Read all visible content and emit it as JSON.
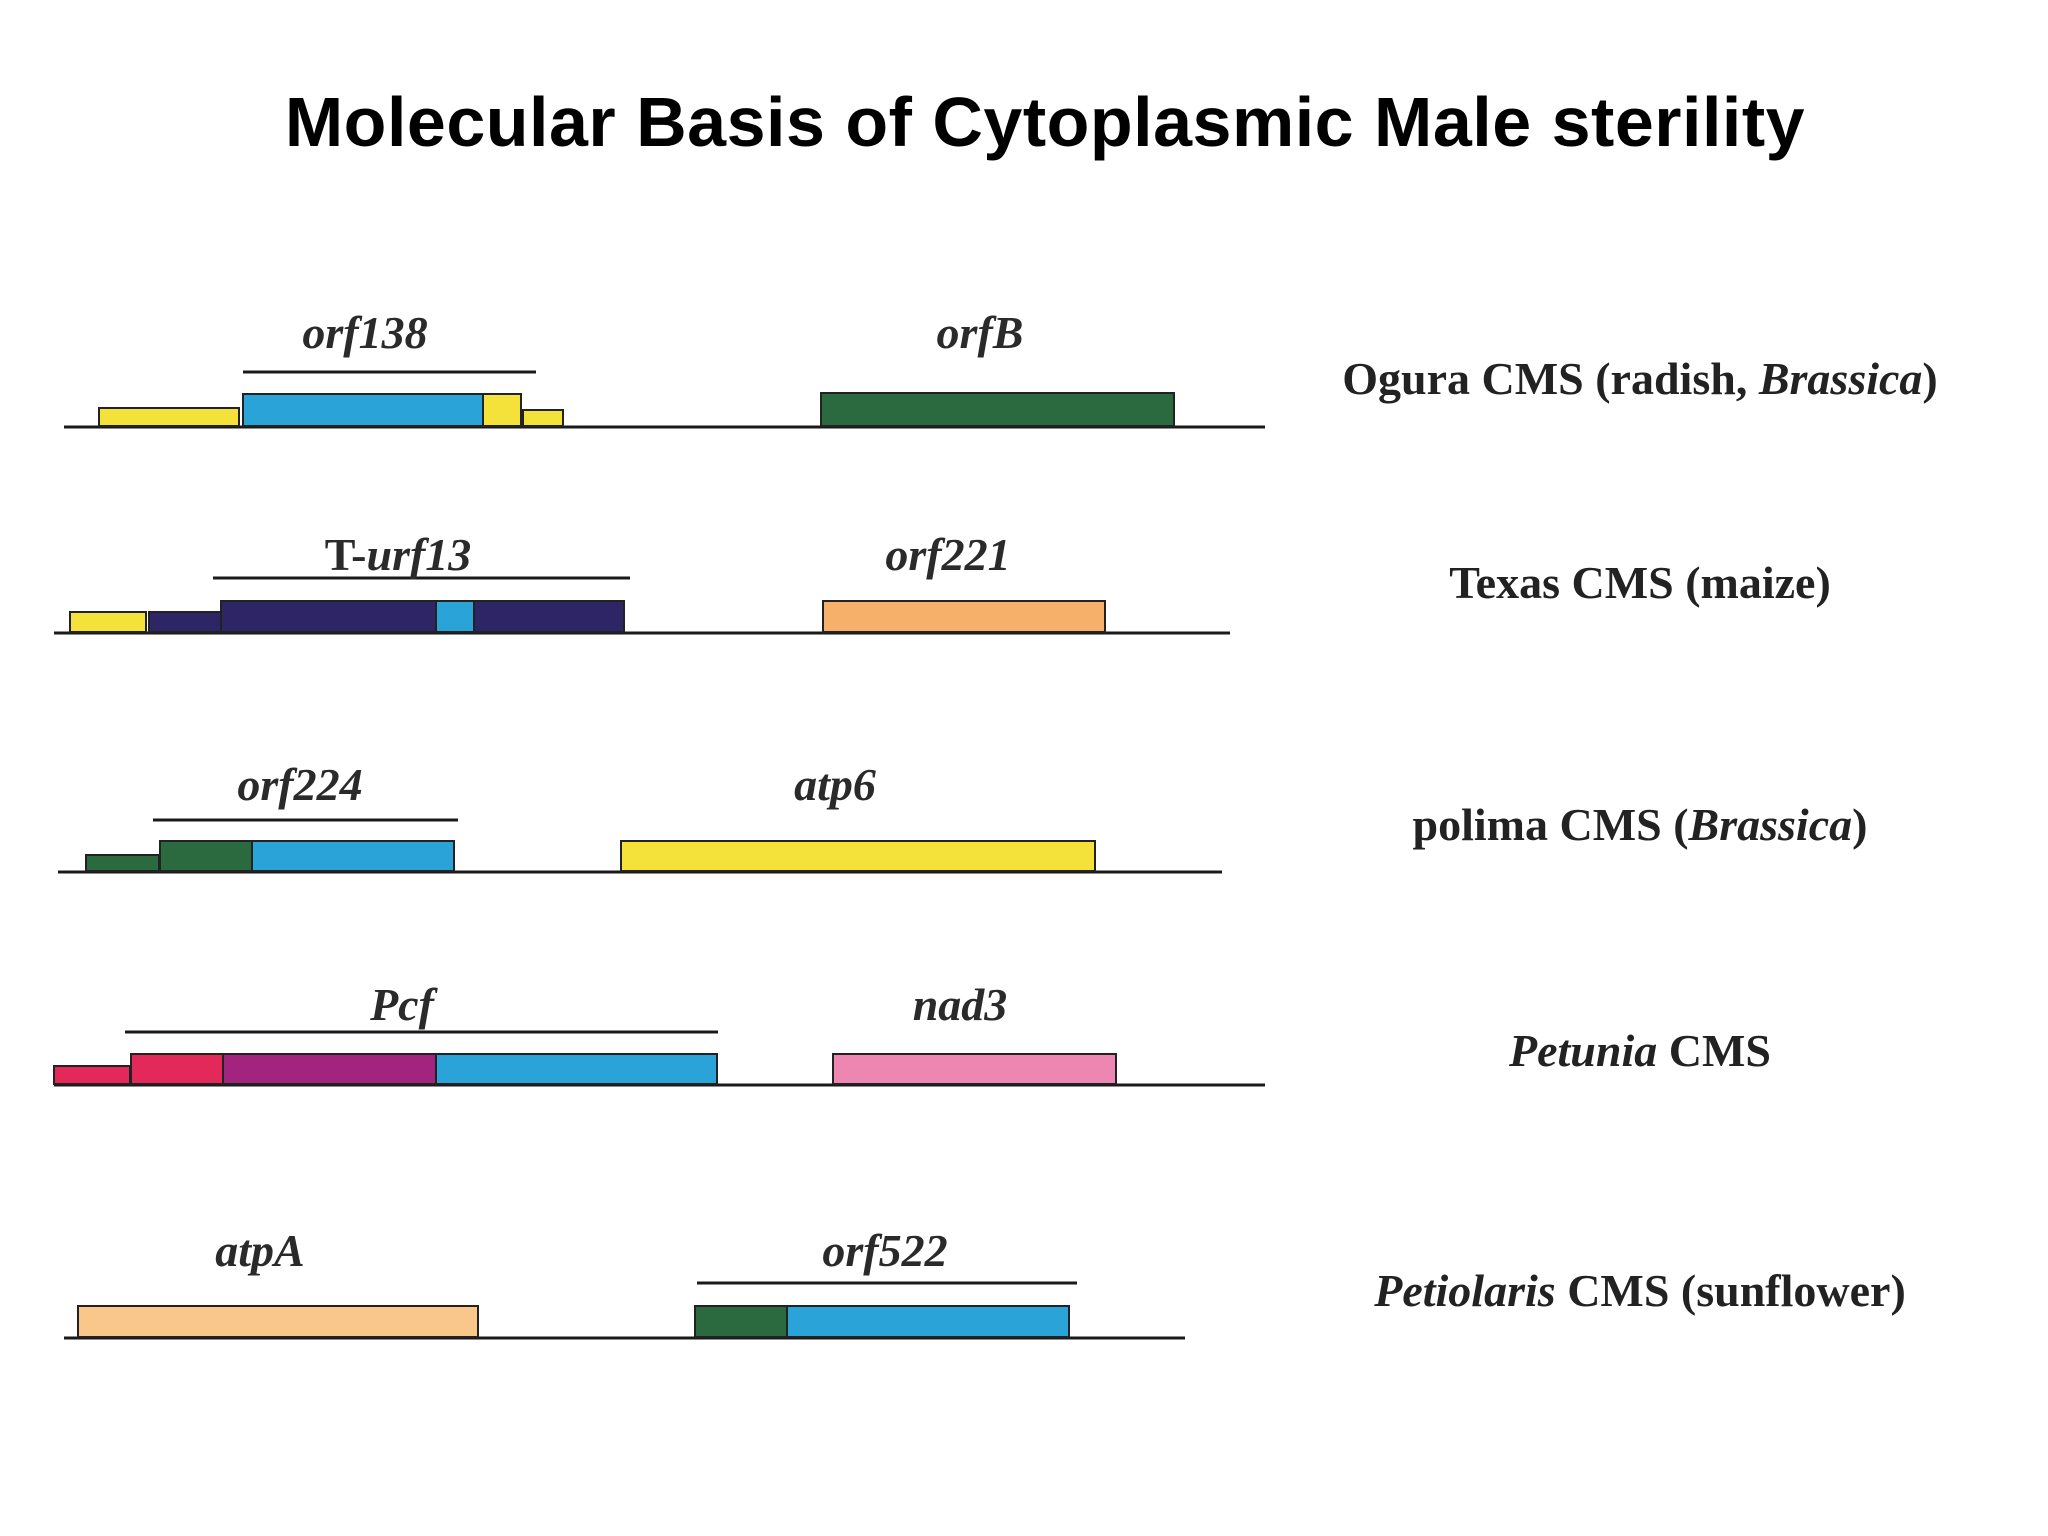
{
  "title": "Molecular Basis of Cytoplasmic Male sterility",
  "rows": [
    {
      "cms": {
        "pre": "Ogura CMS (radish, ",
        "italic": "Brassica",
        "post": ")"
      },
      "left_gene": {
        "pre": "",
        "italic": "orf138"
      },
      "right_gene": {
        "pre": "",
        "italic": "orfB"
      }
    },
    {
      "cms": {
        "pre": "Texas CMS (maize)",
        "italic": "",
        "post": ""
      },
      "left_gene": {
        "pre": "T-",
        "italic": "urf13"
      },
      "right_gene": {
        "pre": "",
        "italic": "orf221"
      }
    },
    {
      "cms": {
        "pre": "polima CMS (",
        "italic": "Brassica",
        "post": ")"
      },
      "left_gene": {
        "pre": "",
        "italic": "orf224"
      },
      "right_gene": {
        "pre": "",
        "italic": "atp6"
      }
    },
    {
      "cms": {
        "pre": "",
        "italic": "Petunia",
        "post": " CMS"
      },
      "left_gene": {
        "pre": "",
        "italic": "Pcf"
      },
      "right_gene": {
        "pre": "",
        "italic": "nad3"
      }
    },
    {
      "cms": {
        "pre": "",
        "italic": "Petiolaris",
        "post": " CMS (sunflower)"
      },
      "left_gene": {
        "pre": "",
        "italic": "atpA"
      },
      "right_gene": {
        "pre": "",
        "italic": "orf522"
      }
    }
  ],
  "colors": {
    "yellow": "#f4e23a",
    "blue": "#2aa3d8",
    "dark_green": "#2b6a3f",
    "dark_purple": "#2e2566",
    "orange": "#f7b06a",
    "crimson": "#e3285a",
    "magenta": "#a2247f",
    "pink": "#ee86b2",
    "peach": "#f9c78a",
    "line": "#1a1a1a"
  }
}
